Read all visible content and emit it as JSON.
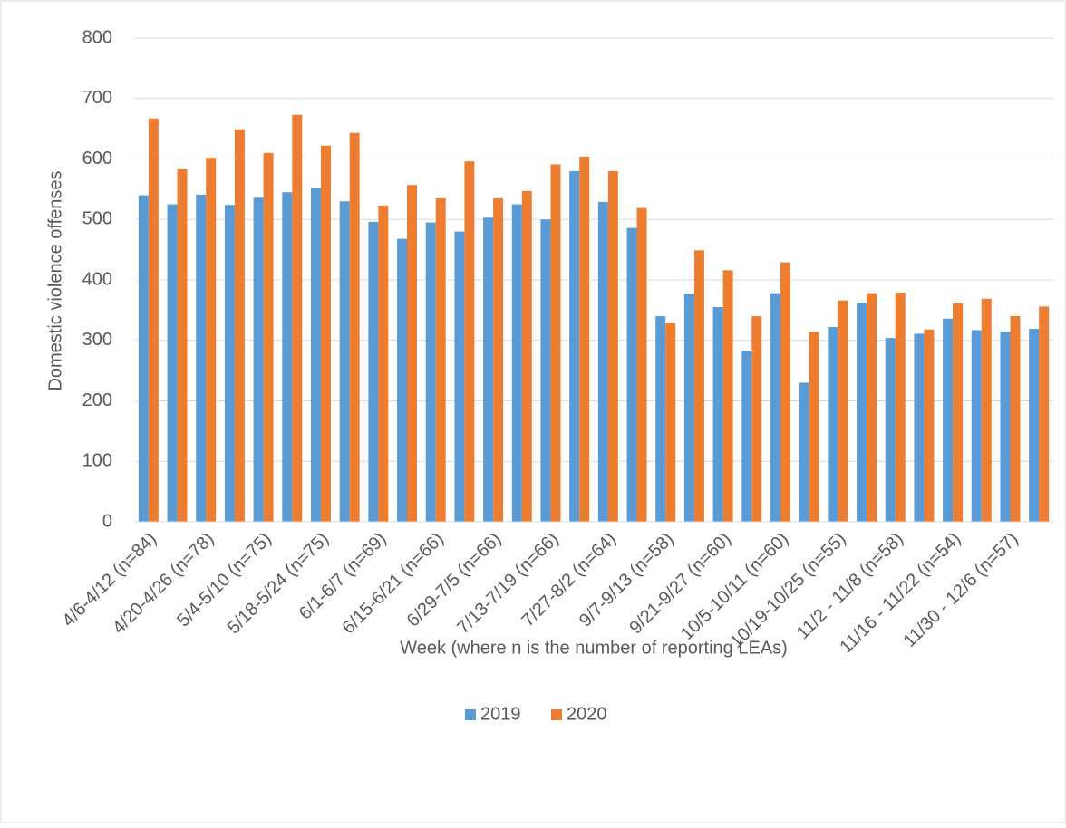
{
  "chart_data": {
    "type": "bar",
    "y_label": "Domestic violence offenses",
    "x_label": "Week (where n is the number of reporting LEAs)",
    "categories": [
      "4/6-4/12 (n=84)",
      null,
      "4/20-4/26 (n=78)",
      null,
      "5/4-5/10 (n=75)",
      null,
      "5/18-5/24 (n=75)",
      null,
      "6/1-6/7 (n=69)",
      null,
      "6/15-6/21 (n=66)",
      null,
      "6/29-7/5 (n=66)",
      null,
      "7/13-7/19 (n=66)",
      null,
      "7/27-8/2 (n=64)",
      null,
      "9/7-9/13 (n=58)",
      null,
      "9/21-9/27 (n=60)",
      null,
      "10/5-10/11 (n=60)",
      null,
      "10/19-10/25 (n=55)",
      null,
      "11/2 - 11/8 (n=58)",
      null,
      "11/16 - 11/22 (n=54)",
      null,
      "11/30 - 12/6 (n=57)",
      null
    ],
    "series": [
      {
        "name": "2019",
        "color": "#5b9bd5",
        "values": [
          540,
          525,
          541,
          524,
          536,
          545,
          552,
          530,
          496,
          468,
          495,
          480,
          503,
          525,
          500,
          580,
          529,
          486,
          340,
          377,
          355,
          283,
          378,
          230,
          322,
          362,
          304,
          311,
          336,
          317,
          314,
          319
        ]
      },
      {
        "name": "2020",
        "color": "#ed7d31",
        "values": [
          667,
          583,
          602,
          649,
          610,
          673,
          622,
          643,
          523,
          557,
          535,
          596,
          535,
          547,
          591,
          604,
          580,
          519,
          329,
          449,
          416,
          340,
          429,
          314,
          366,
          378,
          379,
          318,
          361,
          369,
          340,
          356
        ]
      }
    ],
    "ylim": [
      0,
      800
    ],
    "yticks": [
      0,
      100,
      200,
      300,
      400,
      500,
      600,
      700,
      800
    ],
    "grid": true,
    "legend": "bottom"
  }
}
